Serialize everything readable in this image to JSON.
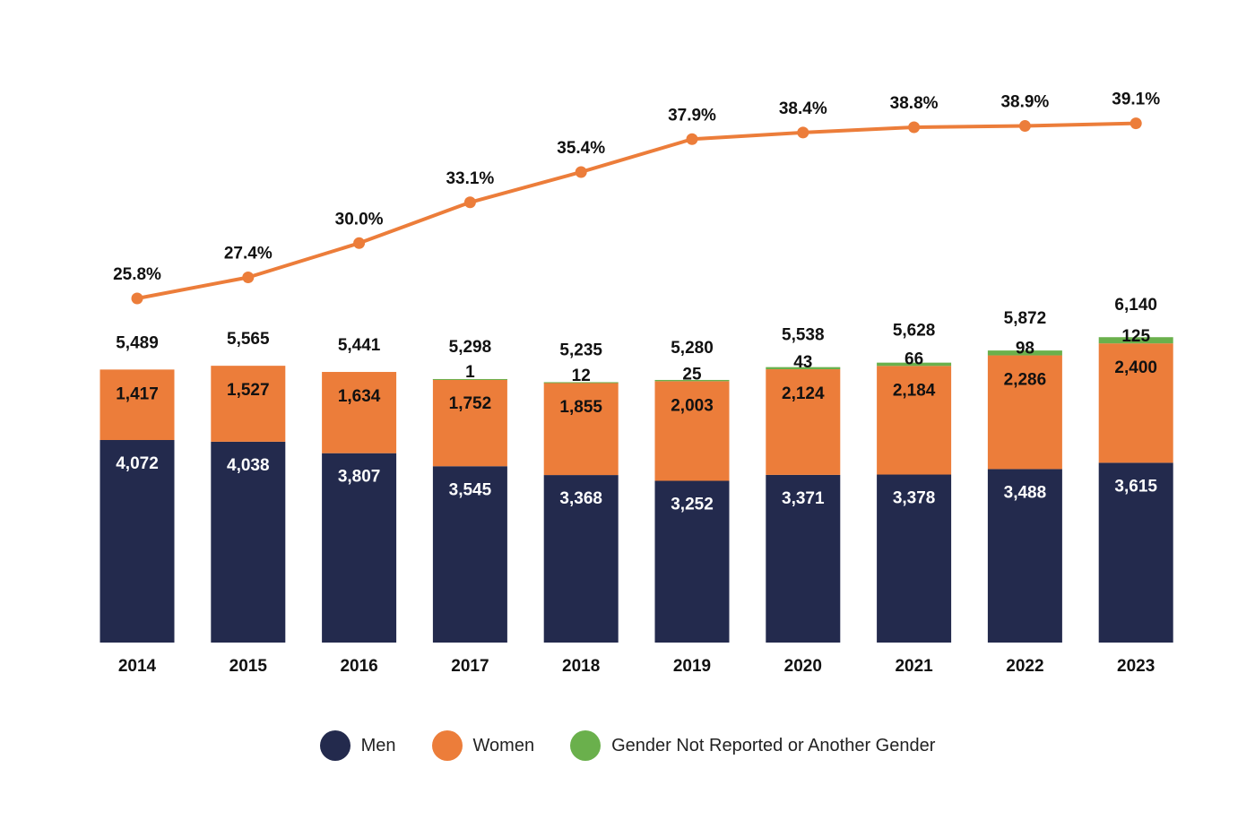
{
  "chart_data": {
    "type": "bar",
    "stacked": true,
    "categories": [
      "2014",
      "2015",
      "2016",
      "2017",
      "2018",
      "2019",
      "2020",
      "2021",
      "2022",
      "2023"
    ],
    "series": [
      {
        "name": "Men",
        "color": "#232a4d",
        "values": [
          4072,
          4038,
          3807,
          3545,
          3368,
          3252,
          3371,
          3378,
          3488,
          3615
        ],
        "labels": [
          "4,072",
          "4,038",
          "3,807",
          "3,545",
          "3,368",
          "3,252",
          "3,371",
          "3,378",
          "3,488",
          "3,615"
        ]
      },
      {
        "name": "Women",
        "color": "#ec7d3a",
        "values": [
          1417,
          1527,
          1634,
          1752,
          1855,
          2003,
          2124,
          2184,
          2286,
          2400
        ],
        "labels": [
          "1,417",
          "1,527",
          "1,634",
          "1,752",
          "1,855",
          "2,003",
          "2,124",
          "2,184",
          "2,286",
          "2,400"
        ]
      },
      {
        "name": "Gender Not Reported or Another Gender",
        "color": "#6ab04c",
        "values": [
          0,
          0,
          0,
          1,
          12,
          25,
          43,
          66,
          98,
          125
        ],
        "labels": [
          "",
          "",
          "",
          "1",
          "12",
          "25",
          "43",
          "66",
          "98",
          "125"
        ]
      }
    ],
    "totals": [
      "5,489",
      "5,565",
      "5,441",
      "5,298",
      "5,235",
      "5,280",
      "5,538",
      "5,628",
      "5,872",
      "6,140"
    ],
    "line": {
      "color": "#ec7d3a",
      "values": [
        25.8,
        27.4,
        30.0,
        33.1,
        35.4,
        37.9,
        38.4,
        38.8,
        38.9,
        39.1
      ],
      "labels": [
        "25.8%",
        "27.4%",
        "30.0%",
        "33.1%",
        "35.4%",
        "37.9%",
        "38.4%",
        "38.8%",
        "38.9%",
        "39.1%"
      ]
    },
    "legend_position": "bottom",
    "grid": false
  }
}
